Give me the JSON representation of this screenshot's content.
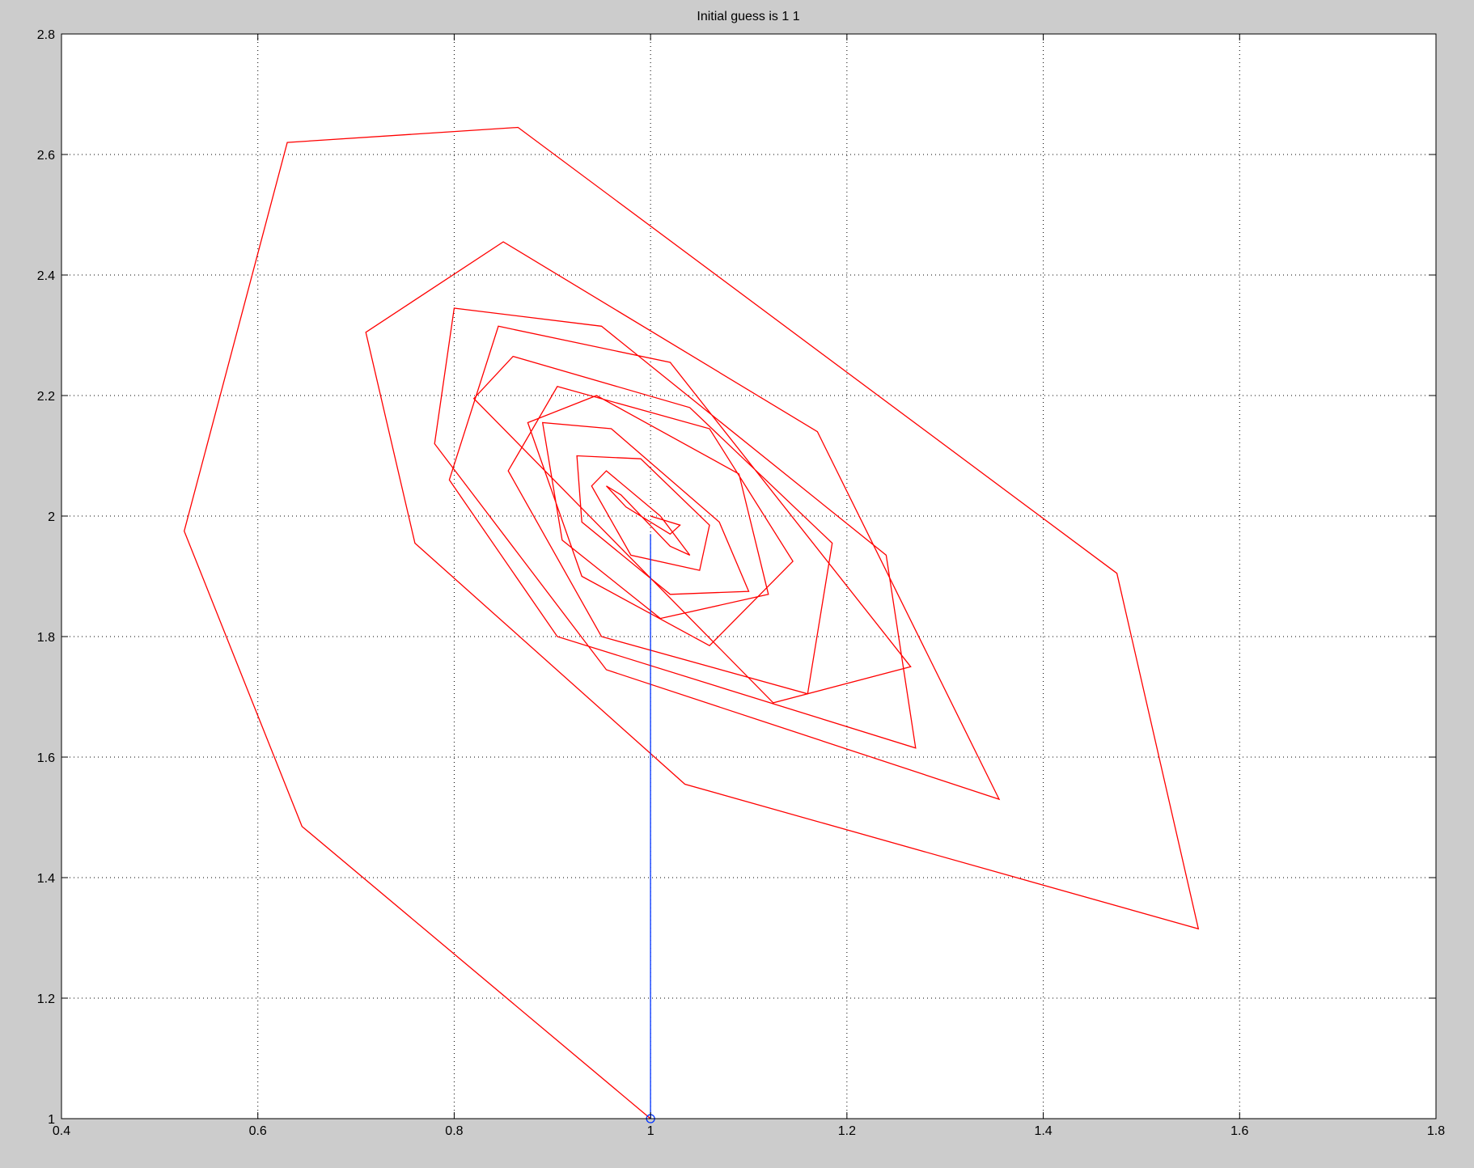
{
  "window": {
    "background": "#cccccc"
  },
  "chart_data": {
    "type": "line",
    "title": "Initial guess is 1 1",
    "xlabel": "",
    "ylabel": "",
    "xlim": [
      0.4,
      1.8
    ],
    "ylim": [
      1,
      2.8
    ],
    "xticks": [
      0.4,
      0.6,
      0.8,
      1,
      1.2,
      1.4,
      1.6,
      1.8
    ],
    "xtick_labels": [
      "0.4",
      "0.6",
      "0.8",
      "1",
      "1.2",
      "1.4",
      "1.6",
      "1.8"
    ],
    "yticks": [
      1,
      1.2,
      1.4,
      1.6,
      1.8,
      2,
      2.2,
      2.4,
      2.6,
      2.8
    ],
    "ytick_labels": [
      "1",
      "1.2",
      "1.4",
      "1.6",
      "1.8",
      "2",
      "2.2",
      "2.4",
      "2.6",
      "2.8"
    ],
    "grid": true,
    "grid_style": "dotted",
    "series": [
      {
        "color": "#ff0000",
        "x": [
          1.0,
          0.645,
          0.525,
          0.63,
          0.865,
          1.475,
          1.558,
          1.035,
          0.76,
          0.71,
          0.85,
          1.17,
          1.355,
          0.955,
          0.78,
          0.8,
          0.95,
          1.24,
          1.27,
          0.905,
          0.795,
          0.845,
          1.02,
          1.265,
          1.125,
          0.82,
          0.86,
          1.04,
          1.185,
          1.16,
          0.95,
          0.855,
          0.905,
          1.06,
          1.145,
          1.06,
          0.93,
          0.875,
          0.945,
          1.09,
          1.12,
          1.01,
          0.91,
          0.89,
          0.96,
          1.07,
          1.1,
          1.02,
          0.93,
          0.925,
          0.99,
          1.06,
          1.05,
          0.98,
          0.94,
          0.955,
          1.01,
          1.04,
          1.02,
          0.97,
          0.955,
          0.975,
          1.02,
          1.03,
          1.0
        ],
        "y": [
          1.0,
          1.485,
          1.975,
          2.62,
          2.645,
          1.905,
          1.315,
          1.555,
          1.955,
          2.305,
          2.455,
          2.14,
          1.53,
          1.745,
          2.12,
          2.345,
          2.315,
          1.935,
          1.615,
          1.8,
          2.06,
          2.315,
          2.255,
          1.75,
          1.69,
          2.195,
          2.265,
          2.18,
          1.955,
          1.705,
          1.8,
          2.075,
          2.215,
          2.145,
          1.925,
          1.785,
          1.9,
          2.155,
          2.2,
          2.07,
          1.87,
          1.83,
          1.96,
          2.155,
          2.145,
          1.99,
          1.875,
          1.87,
          1.99,
          2.1,
          2.095,
          1.985,
          1.91,
          1.935,
          2.05,
          2.075,
          2.0,
          1.935,
          1.95,
          2.035,
          2.05,
          2.015,
          1.97,
          1.985,
          2.0
        ]
      },
      {
        "color": "#0033ff",
        "x": [
          1.0,
          1.0
        ],
        "y": [
          1.0,
          1.97
        ]
      }
    ],
    "markers": [
      {
        "x": 1.0,
        "y": 1.0,
        "shape": "circle",
        "color": "#0033ff"
      }
    ]
  }
}
